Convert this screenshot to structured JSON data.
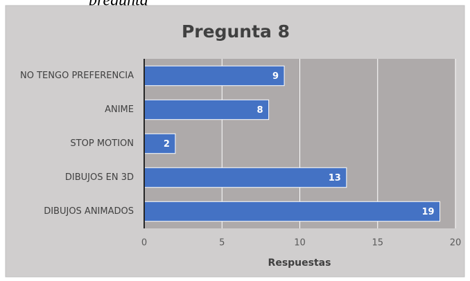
{
  "caption": "pregunta",
  "chart_data": {
    "type": "barh",
    "title": "Pregunta 8",
    "categories": [
      "NO TENGO PREFERENCIA",
      "ANIME",
      "STOP MOTION",
      "DIBUJOS EN 3D",
      "DIBUJOS ANIMADOS"
    ],
    "values": [
      9,
      8,
      2,
      13,
      19
    ],
    "color": "#4472c4",
    "xlabel": "Respuestas",
    "xlim": [
      0,
      20
    ],
    "xticks": [
      0,
      5,
      10,
      15,
      20
    ],
    "grid": true,
    "data_labels": true
  }
}
